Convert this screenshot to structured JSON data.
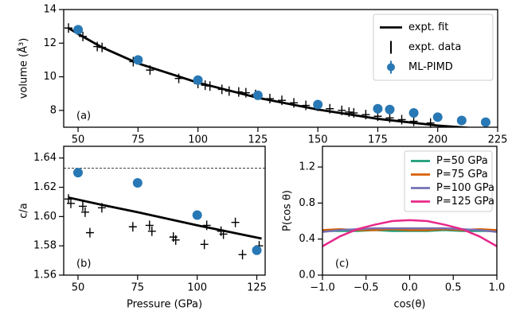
{
  "chart_data": [
    {
      "type": "line",
      "annotation": "(a)",
      "ylabel": "volume (Å³)",
      "xlim": [
        44,
        225
      ],
      "xticks": [
        50,
        75,
        100,
        125,
        150,
        175,
        200,
        225
      ],
      "ylim": [
        7,
        14
      ],
      "yticks": [
        8,
        10,
        12,
        14
      ],
      "legend": "upper right",
      "series": [
        {
          "name": "expt. fit",
          "style": "line",
          "color": "#000000",
          "x": [
            46,
            50,
            60,
            75,
            100,
            125,
            150,
            175,
            200,
            214
          ],
          "values": [
            12.9,
            12.55,
            11.75,
            10.8,
            9.65,
            8.75,
            8.05,
            7.5,
            7.1,
            6.95
          ]
        },
        {
          "name": "expt. data",
          "style": "cross",
          "color": "#000000",
          "x": [
            46,
            52,
            58,
            60,
            73,
            80,
            92,
            100,
            103,
            105,
            110,
            113,
            117,
            120,
            124,
            130,
            135,
            140,
            145,
            150,
            155,
            160,
            163,
            165,
            170,
            175,
            180,
            185,
            190,
            197
          ],
          "values": [
            12.9,
            12.4,
            11.8,
            11.75,
            10.9,
            10.4,
            9.9,
            9.6,
            9.5,
            9.45,
            9.25,
            9.15,
            9.1,
            9.05,
            8.95,
            8.7,
            8.6,
            8.45,
            8.3,
            8.25,
            8.1,
            8.0,
            7.9,
            7.85,
            7.75,
            7.65,
            7.55,
            7.45,
            7.35,
            7.25
          ]
        },
        {
          "name": "ML-PIMD",
          "style": "marker",
          "color": "#2878b5",
          "x": [
            50,
            75,
            100,
            125,
            150,
            175,
            180,
            190,
            200,
            210,
            220
          ],
          "values": [
            12.8,
            11.0,
            9.8,
            8.9,
            8.35,
            8.1,
            8.05,
            7.85,
            7.6,
            7.4,
            7.3
          ]
        }
      ]
    },
    {
      "type": "line",
      "annotation": "(b)",
      "ylabel": "c/a",
      "xlabel": "Pressure (GPa)",
      "xlim": [
        44,
        128.5
      ],
      "xticks": [
        50,
        75,
        100,
        125
      ],
      "ylim": [
        1.56,
        1.648
      ],
      "yticks": [
        {
          "value": 1.56,
          "label": "1.56"
        },
        {
          "value": 1.58,
          "label": "1.58"
        },
        {
          "value": 1.6,
          "label": "1.60"
        },
        {
          "value": 1.62,
          "label": "1.62"
        },
        {
          "value": 1.64,
          "label": "1.64"
        }
      ],
      "hline": 1.633,
      "series": [
        {
          "name": "expt. fit",
          "style": "line",
          "color": "#000000",
          "x": [
            46,
            60,
            75,
            100,
            127
          ],
          "values": [
            1.613,
            1.608,
            1.603,
            1.594,
            1.585
          ]
        },
        {
          "name": "expt. data",
          "style": "cross",
          "color": "#000000",
          "x": [
            46,
            47,
            52,
            53,
            55,
            60,
            73,
            80,
            81,
            90,
            91,
            103,
            104,
            110,
            111,
            116,
            119,
            126
          ],
          "values": [
            1.612,
            1.609,
            1.607,
            1.603,
            1.589,
            1.606,
            1.593,
            1.594,
            1.59,
            1.586,
            1.584,
            1.581,
            1.594,
            1.59,
            1.588,
            1.596,
            1.574,
            1.58
          ]
        },
        {
          "name": "ML-PIMD",
          "style": "marker",
          "color": "#2878b5",
          "x": [
            50,
            75,
            100,
            125
          ],
          "values": [
            1.63,
            1.623,
            1.601,
            1.577
          ]
        }
      ]
    },
    {
      "type": "line",
      "annotation": "(c)",
      "ylabel": "P(cos θ)",
      "xlabel": "cos(θ)",
      "xlim": [
        -1,
        1
      ],
      "xticks": [
        {
          "value": -1,
          "label": "−1.0"
        },
        {
          "value": -0.5,
          "label": "−0.5"
        },
        {
          "value": 0,
          "label": "0.0"
        },
        {
          "value": 0.5,
          "label": "0.5"
        },
        {
          "value": 1,
          "label": "1.0"
        }
      ],
      "ylim": [
        0,
        1.43
      ],
      "yticks": [
        {
          "value": 0,
          "label": "0.0"
        },
        {
          "value": 0.4,
          "label": "0.4"
        },
        {
          "value": 0.8,
          "label": "0.8"
        },
        {
          "value": 1.2,
          "label": "1.2"
        }
      ],
      "legend": "upper right",
      "series": [
        {
          "name": "P=50 GPa",
          "style": "line",
          "color": "#1b9e77",
          "x": [
            -1,
            -0.8,
            -0.6,
            -0.4,
            -0.2,
            0,
            0.2,
            0.4,
            0.6,
            0.8,
            1
          ],
          "values": [
            0.49,
            0.49,
            0.49,
            0.5,
            0.49,
            0.49,
            0.49,
            0.5,
            0.49,
            0.49,
            0.49
          ]
        },
        {
          "name": "P=75 GPa",
          "style": "line",
          "color": "#d95f02",
          "x": [
            -1,
            -0.8,
            -0.6,
            -0.4,
            -0.2,
            0,
            0.2,
            0.4,
            0.6,
            0.8,
            1
          ],
          "values": [
            0.5,
            0.51,
            0.5,
            0.5,
            0.51,
            0.5,
            0.5,
            0.51,
            0.5,
            0.51,
            0.5
          ]
        },
        {
          "name": "P=100 GPa",
          "style": "line",
          "color": "#7570b3",
          "x": [
            -1,
            -0.8,
            -0.6,
            -0.4,
            -0.2,
            0,
            0.2,
            0.4,
            0.6,
            0.8,
            1
          ],
          "values": [
            0.48,
            0.5,
            0.51,
            0.52,
            0.52,
            0.52,
            0.52,
            0.52,
            0.51,
            0.5,
            0.48
          ]
        },
        {
          "name": "P=125 GPa",
          "style": "line",
          "color": "#e7298a",
          "x": [
            -1,
            -0.8,
            -0.6,
            -0.4,
            -0.2,
            0,
            0.2,
            0.4,
            0.6,
            0.8,
            1
          ],
          "values": [
            0.32,
            0.43,
            0.51,
            0.56,
            0.6,
            0.61,
            0.6,
            0.56,
            0.51,
            0.43,
            0.32
          ]
        }
      ]
    }
  ]
}
